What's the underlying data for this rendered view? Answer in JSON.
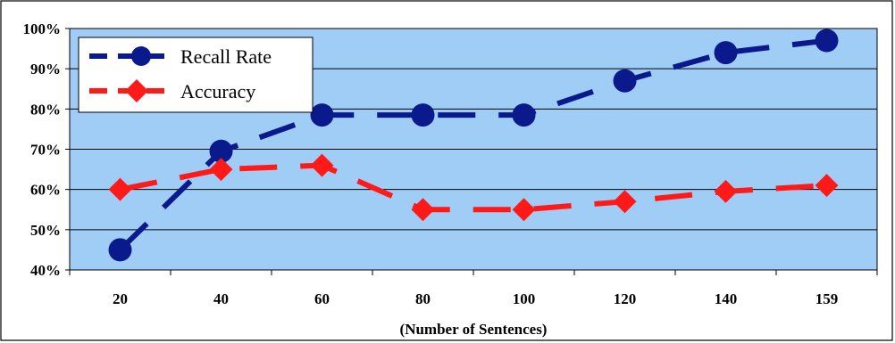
{
  "chart_data": {
    "type": "line",
    "categories": [
      "20",
      "40",
      "60",
      "80",
      "100",
      "120",
      "140",
      "159"
    ],
    "series": [
      {
        "name": "Recall Rate",
        "values": [
          45,
          69.5,
          78.5,
          78.5,
          78.5,
          87,
          94,
          97
        ],
        "color": "#0a1a8c",
        "marker": "circle"
      },
      {
        "name": "Accuracy",
        "values": [
          60,
          65,
          66,
          55,
          55,
          57,
          59.5,
          61
        ],
        "color": "#ff1a1a",
        "marker": "diamond"
      }
    ],
    "y_ticks": [
      "40%",
      "50%",
      "60%",
      "70%",
      "80%",
      "90%",
      "100%"
    ],
    "ylim": [
      40,
      100
    ],
    "xlabel": "(Number of Sentences)",
    "ylabel": "",
    "grid": true,
    "legend_position": "top-left",
    "plot_background": "#9fcdf6"
  }
}
